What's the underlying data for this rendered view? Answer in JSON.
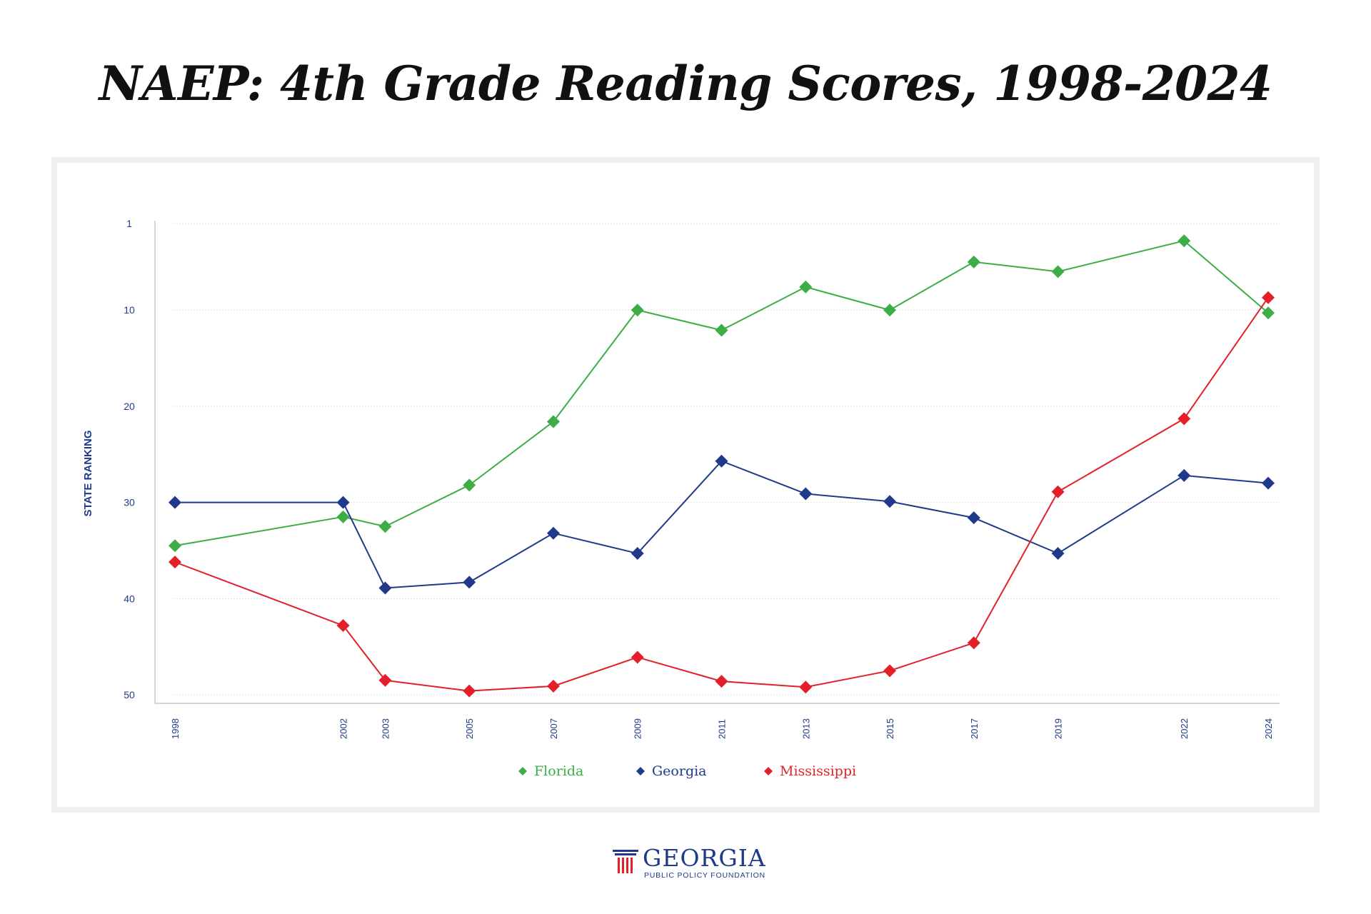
{
  "chart_data": {
    "type": "line",
    "title": "NAEP: 4th Grade Reading Scores, 1998-2024",
    "xlabel": "",
    "ylabel": "STATE RANKING",
    "y_axis_inverted": true,
    "ylim": [
      1,
      50
    ],
    "yticks": [
      1,
      10,
      20,
      30,
      40,
      50
    ],
    "categories": [
      "1998",
      "2002",
      "2003",
      "2005",
      "2007",
      "2009",
      "2011",
      "2013",
      "2015",
      "2017",
      "2019",
      "2022",
      "2024"
    ],
    "grid": true,
    "legend_position": "bottom-center",
    "series": [
      {
        "name": "Florida",
        "color": "#3cae45",
        "values": [
          34.5,
          31.5,
          32.5,
          28.2,
          21.6,
          10.0,
          12.1,
          7.6,
          10.0,
          5.0,
          6.0,
          2.8,
          10.3
        ]
      },
      {
        "name": "Georgia",
        "color": "#1f3a8a",
        "values": [
          30.0,
          30.0,
          38.9,
          38.3,
          33.2,
          35.3,
          25.7,
          29.1,
          29.9,
          31.6,
          35.3,
          27.2,
          28.0
        ]
      },
      {
        "name": "Mississippi",
        "color": "#e3202a",
        "values": [
          36.2,
          42.8,
          48.5,
          49.6,
          49.1,
          46.1,
          48.6,
          49.2,
          47.5,
          44.6,
          28.9,
          21.3,
          8.7
        ]
      }
    ]
  },
  "footer": {
    "org_name": "GEORGIA",
    "org_subtitle": "PUBLIC POLICY FOUNDATION"
  }
}
